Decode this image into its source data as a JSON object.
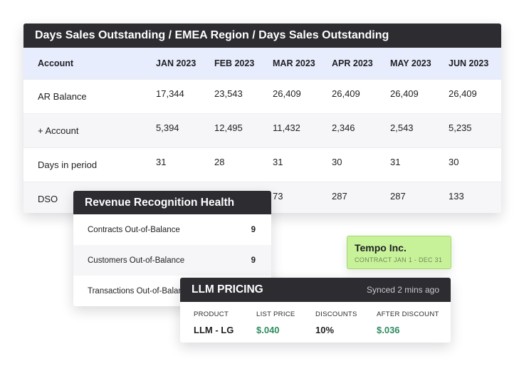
{
  "dso_table": {
    "title": "Days Sales Outstanding  /  EMEA Region  /  Days Sales Outstanding",
    "columns": [
      "Account",
      "JAN 2023",
      "FEB 2023",
      "MAR 2023",
      "APR 2023",
      "MAY 2023",
      "JUN 2023"
    ],
    "rows": [
      [
        "AR Balance",
        "17,344",
        "23,543",
        "26,409",
        "26,409",
        "26,409",
        "26,409"
      ],
      [
        "+ Account",
        "5,394",
        "12,495",
        "11,432",
        "2,346",
        "2,543",
        "5,235"
      ],
      [
        "Days in period",
        "31",
        "28",
        "31",
        "30",
        "31",
        "30"
      ],
      [
        "DSO",
        "",
        "",
        "73",
        "287",
        "287",
        "133"
      ]
    ]
  },
  "revenue_recognition": {
    "title": "Revenue Recognition Health",
    "items": [
      {
        "label": "Contracts Out-of-Balance",
        "count": "9"
      },
      {
        "label": "Customers Out-of-Balance",
        "count": "9"
      },
      {
        "label": "Transactions Out-of-Balance",
        "count": ""
      }
    ]
  },
  "tempo": {
    "name": "Tempo Inc.",
    "contract": "CONTRACT JAN 1 - DEC 31",
    "background": "#c8f29a"
  },
  "llm_pricing": {
    "title": "LLM PRICING",
    "synced": "Synced 2 mins ago",
    "columns": [
      {
        "label": "PRODUCT",
        "value": "LLM - LG"
      },
      {
        "label": "LIST PRICE",
        "value": "$.040"
      },
      {
        "label": "DISCOUNTS",
        "value": "10%"
      },
      {
        "label": "AFTER DISCOUNT",
        "value": "$.036"
      }
    ],
    "accent": "#2f8c61"
  }
}
